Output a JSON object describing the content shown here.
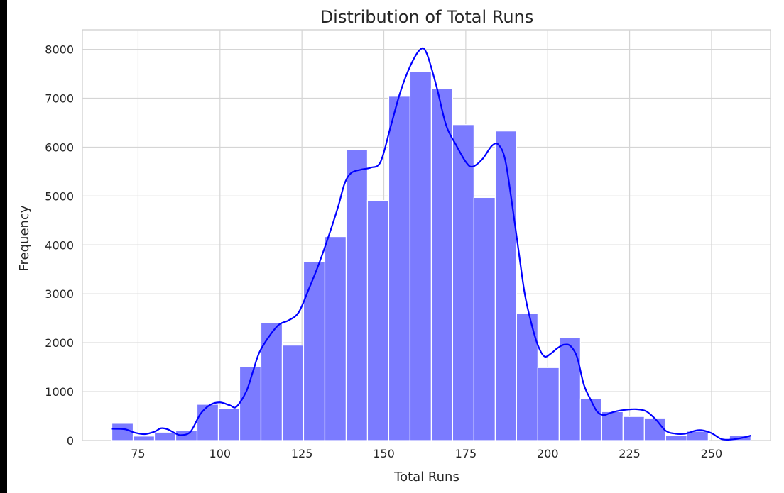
{
  "chart_data": {
    "type": "bar",
    "title": "Distribution of Total Runs",
    "xlabel": "Total Runs",
    "ylabel": "Frequency",
    "xlim": [
      58,
      268
    ],
    "ylim": [
      0,
      8400
    ],
    "grid": true,
    "x_ticks": [
      75,
      100,
      125,
      150,
      175,
      200,
      225,
      250
    ],
    "y_ticks": [
      0,
      1000,
      2000,
      3000,
      4000,
      5000,
      6000,
      7000,
      8000
    ],
    "bar_color": "#7b7bff",
    "kde_color": "#0000ff",
    "bins": [
      {
        "x0": 67.0,
        "x1": 73.5,
        "count": 350
      },
      {
        "x0": 73.5,
        "x1": 80.0,
        "count": 90
      },
      {
        "x0": 80.0,
        "x1": 86.5,
        "count": 170
      },
      {
        "x0": 86.5,
        "x1": 93.0,
        "count": 210
      },
      {
        "x0": 93.0,
        "x1": 99.5,
        "count": 740
      },
      {
        "x0": 99.5,
        "x1": 106.0,
        "count": 660
      },
      {
        "x0": 106.0,
        "x1": 112.5,
        "count": 1510
      },
      {
        "x0": 112.5,
        "x1": 119.0,
        "count": 2410
      },
      {
        "x0": 119.0,
        "x1": 125.5,
        "count": 1950
      },
      {
        "x0": 125.5,
        "x1": 132.0,
        "count": 3660
      },
      {
        "x0": 132.0,
        "x1": 138.5,
        "count": 4170
      },
      {
        "x0": 138.5,
        "x1": 145.0,
        "count": 5950
      },
      {
        "x0": 145.0,
        "x1": 151.5,
        "count": 4910
      },
      {
        "x0": 151.5,
        "x1": 158.0,
        "count": 7040
      },
      {
        "x0": 158.0,
        "x1": 164.5,
        "count": 7550
      },
      {
        "x0": 164.5,
        "x1": 171.0,
        "count": 7200
      },
      {
        "x0": 171.0,
        "x1": 177.5,
        "count": 6460
      },
      {
        "x0": 177.5,
        "x1": 184.0,
        "count": 4970
      },
      {
        "x0": 184.0,
        "x1": 190.5,
        "count": 6330
      },
      {
        "x0": 190.5,
        "x1": 197.0,
        "count": 2600
      },
      {
        "x0": 197.0,
        "x1": 203.5,
        "count": 1490
      },
      {
        "x0": 203.5,
        "x1": 210.0,
        "count": 2110
      },
      {
        "x0": 210.0,
        "x1": 216.5,
        "count": 850
      },
      {
        "x0": 216.5,
        "x1": 223.0,
        "count": 590
      },
      {
        "x0": 223.0,
        "x1": 229.5,
        "count": 490
      },
      {
        "x0": 229.5,
        "x1": 236.0,
        "count": 460
      },
      {
        "x0": 236.0,
        "x1": 242.5,
        "count": 100
      },
      {
        "x0": 242.5,
        "x1": 249.0,
        "count": 190
      },
      {
        "x0": 249.0,
        "x1": 255.5,
        "count": 0
      },
      {
        "x0": 255.5,
        "x1": 262.0,
        "count": 110
      }
    ],
    "kde": [
      [
        67,
        240
      ],
      [
        71,
        230
      ],
      [
        74,
        160
      ],
      [
        77,
        130
      ],
      [
        80,
        180
      ],
      [
        82,
        250
      ],
      [
        84,
        230
      ],
      [
        86,
        160
      ],
      [
        88,
        110
      ],
      [
        91,
        180
      ],
      [
        94,
        540
      ],
      [
        97,
        730
      ],
      [
        100,
        780
      ],
      [
        103,
        720
      ],
      [
        105,
        690
      ],
      [
        108,
        1000
      ],
      [
        110,
        1400
      ],
      [
        112,
        1800
      ],
      [
        115,
        2130
      ],
      [
        118,
        2370
      ],
      [
        121,
        2460
      ],
      [
        124,
        2620
      ],
      [
        127,
        3080
      ],
      [
        130,
        3580
      ],
      [
        133,
        4150
      ],
      [
        136,
        4770
      ],
      [
        138,
        5250
      ],
      [
        140,
        5470
      ],
      [
        143,
        5540
      ],
      [
        146,
        5580
      ],
      [
        149,
        5700
      ],
      [
        152,
        6400
      ],
      [
        155,
        7120
      ],
      [
        158,
        7650
      ],
      [
        161,
        7990
      ],
      [
        163,
        7930
      ],
      [
        166,
        7260
      ],
      [
        169,
        6450
      ],
      [
        172,
        6050
      ],
      [
        175,
        5700
      ],
      [
        177,
        5600
      ],
      [
        180,
        5750
      ],
      [
        183,
        6030
      ],
      [
        185,
        6050
      ],
      [
        187,
        5750
      ],
      [
        189,
        4900
      ],
      [
        191,
        3940
      ],
      [
        193,
        3000
      ],
      [
        195,
        2400
      ],
      [
        197,
        1950
      ],
      [
        199,
        1720
      ],
      [
        201,
        1780
      ],
      [
        203,
        1890
      ],
      [
        205,
        1960
      ],
      [
        207,
        1930
      ],
      [
        209,
        1700
      ],
      [
        211,
        1150
      ],
      [
        213,
        850
      ],
      [
        215,
        600
      ],
      [
        217,
        520
      ],
      [
        219,
        560
      ],
      [
        221,
        600
      ],
      [
        224,
        630
      ],
      [
        227,
        640
      ],
      [
        230,
        600
      ],
      [
        233,
        430
      ],
      [
        236,
        200
      ],
      [
        239,
        140
      ],
      [
        242,
        140
      ],
      [
        245,
        200
      ],
      [
        247,
        210
      ],
      [
        250,
        150
      ],
      [
        253,
        30
      ],
      [
        256,
        20
      ],
      [
        259,
        50
      ],
      [
        262,
        100
      ]
    ]
  }
}
